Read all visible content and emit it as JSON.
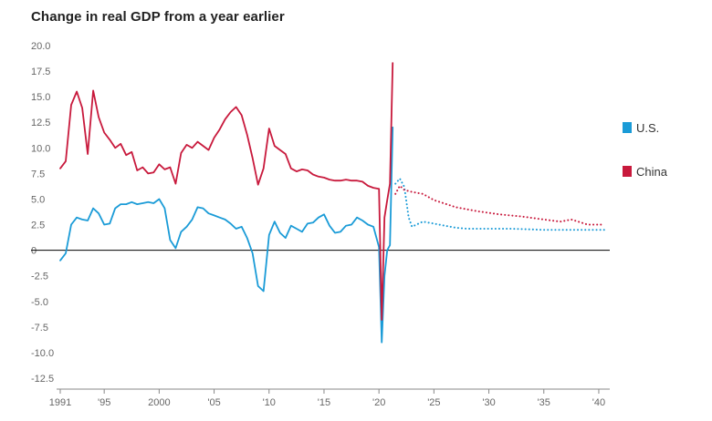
{
  "chart_data": {
    "type": "line",
    "title": "Change in real GDP from a year earlier",
    "xlabel": "",
    "ylabel": "",
    "ylim": [
      -12.5,
      20.0
    ],
    "xlim": [
      1991,
      2041
    ],
    "y_ticks": [
      "20.0",
      "17.5",
      "15.0",
      "12.5",
      "10.0",
      "7.5",
      "5.0",
      "2.5",
      "0",
      "-2.5",
      "-5.0",
      "-7.5",
      "-10.0",
      "-12.5"
    ],
    "y_tick_values": [
      20,
      17.5,
      15,
      12.5,
      10,
      7.5,
      5,
      2.5,
      0,
      -2.5,
      -5,
      -7.5,
      -10,
      -12.5
    ],
    "x_ticks": [
      "1991",
      "'95",
      "2000",
      "'05",
      "'10",
      "'15",
      "'20",
      "'25",
      "'30",
      "'35",
      "'40"
    ],
    "x_tick_values": [
      1991,
      1995,
      2000,
      2005,
      2010,
      2015,
      2020,
      2025,
      2030,
      2035,
      2040
    ],
    "legend": [
      "U.S.",
      "China"
    ],
    "colors": {
      "us": "#1a9bd7",
      "china": "#c8193c",
      "axis": "#000000"
    },
    "series": [
      {
        "name": "U.S.",
        "color": "#1a9bd7",
        "style": "solid",
        "x": [
          1991.0,
          1991.5,
          1992.0,
          1992.5,
          1993.0,
          1993.5,
          1994.0,
          1994.5,
          1995.0,
          1995.5,
          1996.0,
          1996.5,
          1997.0,
          1997.5,
          1998.0,
          1998.5,
          1999.0,
          1999.5,
          2000.0,
          2000.5,
          2001.0,
          2001.5,
          2002.0,
          2002.5,
          2003.0,
          2003.5,
          2004.0,
          2004.5,
          2005.0,
          2005.5,
          2006.0,
          2006.5,
          2007.0,
          2007.5,
          2008.0,
          2008.5,
          2009.0,
          2009.5,
          2010.0,
          2010.5,
          2011.0,
          2011.5,
          2012.0,
          2012.5,
          2013.0,
          2013.5,
          2014.0,
          2014.5,
          2015.0,
          2015.5,
          2016.0,
          2016.5,
          2017.0,
          2017.5,
          2018.0,
          2018.5,
          2019.0,
          2019.5,
          2020.0,
          2020.25,
          2020.5,
          2020.75,
          2021.0,
          2021.25
        ],
        "values": [
          -1.0,
          -0.3,
          2.5,
          3.2,
          3.0,
          2.9,
          4.1,
          3.6,
          2.5,
          2.6,
          4.1,
          4.5,
          4.5,
          4.7,
          4.5,
          4.6,
          4.7,
          4.6,
          5.0,
          4.1,
          1.0,
          0.2,
          1.8,
          2.3,
          3.0,
          4.2,
          4.1,
          3.6,
          3.4,
          3.2,
          3.0,
          2.6,
          2.1,
          2.3,
          1.2,
          -0.3,
          -3.5,
          -4.0,
          1.5,
          2.8,
          1.7,
          1.2,
          2.4,
          2.1,
          1.8,
          2.6,
          2.7,
          3.2,
          3.5,
          2.4,
          1.7,
          1.8,
          2.4,
          2.5,
          3.2,
          2.9,
          2.5,
          2.3,
          0.3,
          -9.0,
          -2.5,
          0.0,
          0.5,
          12.0
        ]
      },
      {
        "name": "U.S. (forecast)",
        "color": "#1a9bd7",
        "style": "dotted",
        "x": [
          2021.5,
          2021.9,
          2022.3,
          2022.7,
          2023.0,
          2023.4,
          2024.0,
          2025.0,
          2026.0,
          2027.0,
          2028.0,
          2030.0,
          2032.0,
          2035.0,
          2038.0,
          2040.5
        ],
        "values": [
          6.5,
          7.0,
          6.2,
          3.2,
          2.3,
          2.5,
          2.8,
          2.6,
          2.4,
          2.2,
          2.1,
          2.1,
          2.1,
          2.0,
          2.0,
          2.0
        ]
      },
      {
        "name": "China",
        "color": "#c8193c",
        "style": "solid",
        "x": [
          1991.0,
          1991.5,
          1992.0,
          1992.5,
          1993.0,
          1993.5,
          1994.0,
          1994.5,
          1995.0,
          1995.5,
          1996.0,
          1996.5,
          1997.0,
          1997.5,
          1998.0,
          1998.5,
          1999.0,
          1999.5,
          2000.0,
          2000.5,
          2001.0,
          2001.5,
          2002.0,
          2002.5,
          2003.0,
          2003.5,
          2004.0,
          2004.5,
          2005.0,
          2005.5,
          2006.0,
          2006.5,
          2007.0,
          2007.5,
          2008.0,
          2008.5,
          2009.0,
          2009.5,
          2010.0,
          2010.5,
          2011.0,
          2011.5,
          2012.0,
          2012.5,
          2013.0,
          2013.5,
          2014.0,
          2014.5,
          2015.0,
          2015.5,
          2016.0,
          2016.5,
          2017.0,
          2017.5,
          2018.0,
          2018.5,
          2019.0,
          2019.5,
          2020.0,
          2020.25,
          2020.5,
          2020.75,
          2021.0,
          2021.25
        ],
        "values": [
          8.0,
          8.7,
          14.2,
          15.5,
          13.9,
          9.4,
          15.6,
          13.0,
          11.5,
          10.8,
          10.0,
          10.4,
          9.3,
          9.6,
          7.8,
          8.1,
          7.5,
          7.6,
          8.4,
          7.9,
          8.1,
          6.5,
          9.5,
          10.3,
          10.0,
          10.6,
          10.2,
          9.8,
          11.0,
          11.8,
          12.8,
          13.5,
          14.0,
          13.2,
          11.3,
          9.0,
          6.4,
          8.0,
          11.9,
          10.2,
          9.8,
          9.4,
          8.0,
          7.7,
          7.9,
          7.8,
          7.4,
          7.2,
          7.1,
          6.9,
          6.8,
          6.8,
          6.9,
          6.8,
          6.8,
          6.7,
          6.3,
          6.1,
          6.0,
          -6.8,
          3.2,
          4.9,
          6.5,
          18.3
        ]
      },
      {
        "name": "China (forecast)",
        "color": "#c8193c",
        "style": "dotted",
        "x": [
          2021.5,
          2021.9,
          2022.3,
          2023.0,
          2024.0,
          2025.0,
          2027.0,
          2029.0,
          2031.0,
          2033.0,
          2035.0,
          2036.5,
          2037.5,
          2039.0,
          2040.5
        ],
        "values": [
          5.5,
          6.3,
          5.9,
          5.7,
          5.5,
          4.9,
          4.2,
          3.8,
          3.5,
          3.3,
          3.0,
          2.8,
          3.0,
          2.5,
          2.5
        ]
      }
    ]
  }
}
